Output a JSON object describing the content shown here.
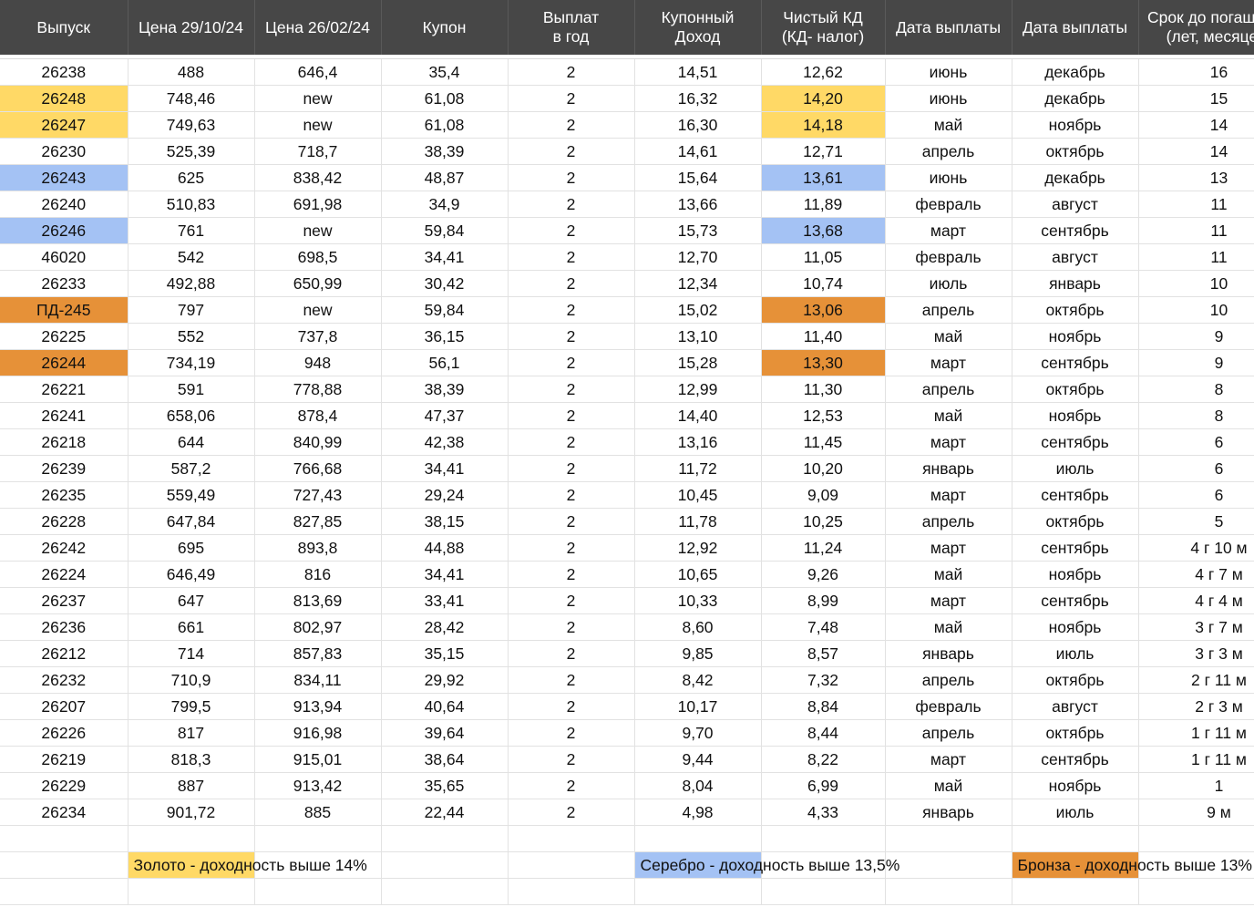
{
  "columns": [
    {
      "key": "issue",
      "label_lines": [
        "Выпуск"
      ]
    },
    {
      "key": "price_oct",
      "label_lines": [
        "Цена 29/10/24"
      ]
    },
    {
      "key": "price_feb",
      "label_lines": [
        "Цена 26/02/24"
      ]
    },
    {
      "key": "coupon",
      "label_lines": [
        "Купон"
      ]
    },
    {
      "key": "payments",
      "label_lines": [
        "Выплат",
        "в год"
      ]
    },
    {
      "key": "coupon_yield",
      "label_lines": [
        "Купонный",
        "Доход"
      ]
    },
    {
      "key": "net_yield",
      "label_lines": [
        "Чистый КД",
        "(КД- налог)"
      ]
    },
    {
      "key": "pay_date_1",
      "label_lines": [
        "Дата выплаты"
      ]
    },
    {
      "key": "pay_date_2",
      "label_lines": [
        "Дата выплаты"
      ]
    },
    {
      "key": "maturity",
      "label_lines": [
        "Срок до погашения",
        "(лет, месяцев)"
      ]
    }
  ],
  "rows": [
    {
      "cells": [
        "26238",
        "488",
        "646,4",
        "35,4",
        "2",
        "14,51",
        "12,62",
        "июнь",
        "декабрь",
        "16"
      ],
      "highlight": null
    },
    {
      "cells": [
        "26248",
        "748,46",
        "new",
        "61,08",
        "2",
        "16,32",
        "14,20",
        "июнь",
        "декабрь",
        "15"
      ],
      "highlight": "gold"
    },
    {
      "cells": [
        "26247",
        "749,63",
        "new",
        "61,08",
        "2",
        "16,30",
        "14,18",
        "май",
        "ноябрь",
        "14"
      ],
      "highlight": "gold"
    },
    {
      "cells": [
        "26230",
        "525,39",
        "718,7",
        "38,39",
        "2",
        "14,61",
        "12,71",
        "апрель",
        "октябрь",
        "14"
      ],
      "highlight": null
    },
    {
      "cells": [
        "26243",
        "625",
        "838,42",
        "48,87",
        "2",
        "15,64",
        "13,61",
        "июнь",
        "декабрь",
        "13"
      ],
      "highlight": "silver"
    },
    {
      "cells": [
        "26240",
        "510,83",
        "691,98",
        "34,9",
        "2",
        "13,66",
        "11,89",
        "февраль",
        "август",
        "11"
      ],
      "highlight": null
    },
    {
      "cells": [
        "26246",
        "761",
        "new",
        "59,84",
        "2",
        "15,73",
        "13,68",
        "март",
        "сентябрь",
        "11"
      ],
      "highlight": "silver"
    },
    {
      "cells": [
        "46020",
        "542",
        "698,5",
        "34,41",
        "2",
        "12,70",
        "11,05",
        "февраль",
        "август",
        "11"
      ],
      "highlight": null
    },
    {
      "cells": [
        "26233",
        "492,88",
        "650,99",
        "30,42",
        "2",
        "12,34",
        "10,74",
        "июль",
        "январь",
        "10"
      ],
      "highlight": null
    },
    {
      "cells": [
        "ПД-245",
        "797",
        "new",
        "59,84",
        "2",
        "15,02",
        "13,06",
        "апрель",
        "октябрь",
        "10"
      ],
      "highlight": "bronze"
    },
    {
      "cells": [
        "26225",
        "552",
        "737,8",
        "36,15",
        "2",
        "13,10",
        "11,40",
        "май",
        "ноябрь",
        "9"
      ],
      "highlight": null
    },
    {
      "cells": [
        "26244",
        "734,19",
        "948",
        "56,1",
        "2",
        "15,28",
        "13,30",
        "март",
        "сентябрь",
        "9"
      ],
      "highlight": "bronze"
    },
    {
      "cells": [
        "26221",
        "591",
        "778,88",
        "38,39",
        "2",
        "12,99",
        "11,30",
        "апрель",
        "октябрь",
        "8"
      ],
      "highlight": null
    },
    {
      "cells": [
        "26241",
        "658,06",
        "878,4",
        "47,37",
        "2",
        "14,40",
        "12,53",
        "май",
        "ноябрь",
        "8"
      ],
      "highlight": null
    },
    {
      "cells": [
        "26218",
        "644",
        "840,99",
        "42,38",
        "2",
        "13,16",
        "11,45",
        "март",
        "сентябрь",
        "6"
      ],
      "highlight": null
    },
    {
      "cells": [
        "26239",
        "587,2",
        "766,68",
        "34,41",
        "2",
        "11,72",
        "10,20",
        "январь",
        "июль",
        "6"
      ],
      "highlight": null
    },
    {
      "cells": [
        "26235",
        "559,49",
        "727,43",
        "29,24",
        "2",
        "10,45",
        "9,09",
        "март",
        "сентябрь",
        "6"
      ],
      "highlight": null
    },
    {
      "cells": [
        "26228",
        "647,84",
        "827,85",
        "38,15",
        "2",
        "11,78",
        "10,25",
        "апрель",
        "октябрь",
        "5"
      ],
      "highlight": null
    },
    {
      "cells": [
        "26242",
        "695",
        "893,8",
        "44,88",
        "2",
        "12,92",
        "11,24",
        "март",
        "сентябрь",
        "4 г 10 м"
      ],
      "highlight": null
    },
    {
      "cells": [
        "26224",
        "646,49",
        "816",
        "34,41",
        "2",
        "10,65",
        "9,26",
        "май",
        "ноябрь",
        "4 г 7 м"
      ],
      "highlight": null
    },
    {
      "cells": [
        "26237",
        "647",
        "813,69",
        "33,41",
        "2",
        "10,33",
        "8,99",
        "март",
        "сентябрь",
        "4 г 4 м"
      ],
      "highlight": null
    },
    {
      "cells": [
        "26236",
        "661",
        "802,97",
        "28,42",
        "2",
        "8,60",
        "7,48",
        "май",
        "ноябрь",
        "3 г 7 м"
      ],
      "highlight": null
    },
    {
      "cells": [
        "26212",
        "714",
        "857,83",
        "35,15",
        "2",
        "9,85",
        "8,57",
        "январь",
        "июль",
        "3 г 3 м"
      ],
      "highlight": null
    },
    {
      "cells": [
        "26232",
        "710,9",
        "834,11",
        "29,92",
        "2",
        "8,42",
        "7,32",
        "апрель",
        "октябрь",
        "2 г 11 м"
      ],
      "highlight": null
    },
    {
      "cells": [
        "26207",
        "799,5",
        "913,94",
        "40,64",
        "2",
        "10,17",
        "8,84",
        "февраль",
        "август",
        "2 г 3 м"
      ],
      "highlight": null
    },
    {
      "cells": [
        "26226",
        "817",
        "916,98",
        "39,64",
        "2",
        "9,70",
        "8,44",
        "апрель",
        "октябрь",
        "1 г 11 м"
      ],
      "highlight": null
    },
    {
      "cells": [
        "26219",
        "818,3",
        "915,01",
        "38,64",
        "2",
        "9,44",
        "8,22",
        "март",
        "сентябрь",
        "1 г 11 м"
      ],
      "highlight": null
    },
    {
      "cells": [
        "26229",
        "887",
        "913,42",
        "35,65",
        "2",
        "8,04",
        "6,99",
        "май",
        "ноябрь",
        "1"
      ],
      "highlight": null
    },
    {
      "cells": [
        "26234",
        "901,72",
        "885",
        "22,44",
        "2",
        "4,98",
        "4,33",
        "январь",
        "июль",
        "9 м"
      ],
      "highlight": null
    }
  ],
  "highlight_columns": [
    "issue",
    "net_yield"
  ],
  "highlight_colors": {
    "gold": "#ffd966",
    "silver": "#a4c2f4",
    "bronze": "#e69138"
  },
  "legend": {
    "gold": {
      "text": "Золото - доходность выше 14%",
      "color": "#ffd966"
    },
    "silver": {
      "text": "Серебро - доходность выше 13,5%",
      "color": "#a4c2f4"
    },
    "bronze": {
      "text": "Бронза - доходность выше 13%",
      "color": "#e69138"
    }
  },
  "header_bg": "#474747"
}
